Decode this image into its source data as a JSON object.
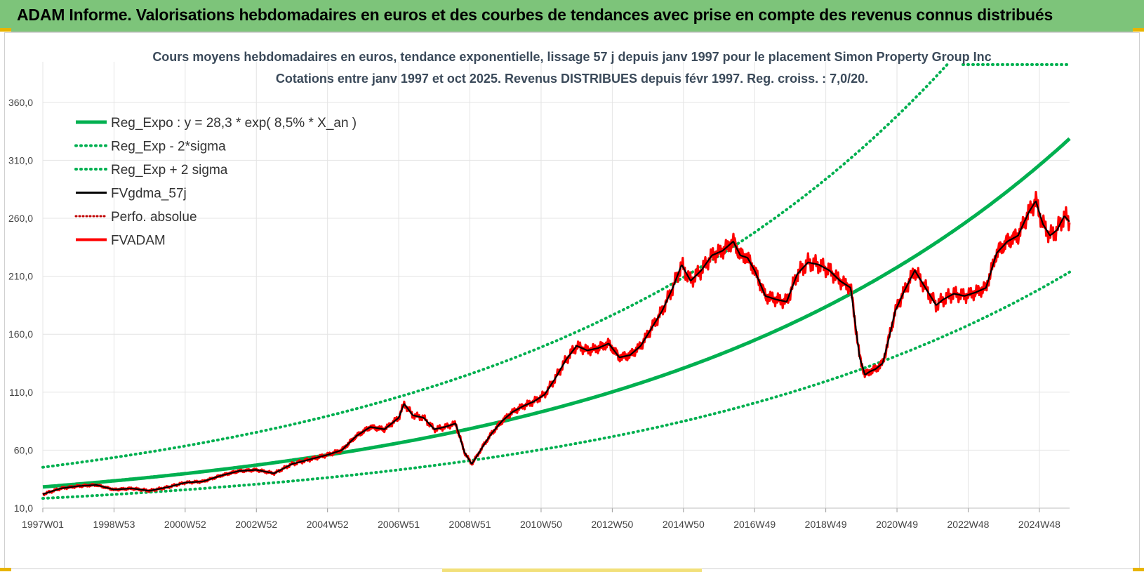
{
  "banner": {
    "title": "ADAM Informe. Valorisations hebdomadaires en euros et des courbes de tendances avec prise en compte des revenus connus distribués"
  },
  "colors": {
    "banner": "#7dc47a",
    "regression": "#00b050",
    "sigma": "#00b050",
    "smoothed": "#000000",
    "perfo": "#c00000",
    "fvadam": "#ff0000",
    "grid": "#e4e4e4"
  },
  "chart_data": {
    "type": "line",
    "title_lines": [
      "Cours moyens hebdomadaires en euros, tendance exponentielle, lissage 57 j depuis janv 1997 pour le placement Simon Property Group Inc",
      "Cotations entre janv 1997 et oct 2025. Revenus DISTRIBUES depuis févr 1997. Reg. croiss. : 7,0/20."
    ],
    "x_range": [
      1997.0,
      2025.85
    ],
    "ylim": [
      10,
      395
    ],
    "y_ticks": [
      10,
      60,
      110,
      160,
      210,
      260,
      310,
      360
    ],
    "y_tick_labels": [
      "10,0",
      "60,0",
      "110,0",
      "160,0",
      "210,0",
      "260,0",
      "310,0",
      "360,0"
    ],
    "x_ticks": [
      1997.0,
      1999.0,
      2001.0,
      2003.0,
      2005.0,
      2007.0,
      2009.0,
      2011.0,
      2013.0,
      2015.0,
      2017.0,
      2019.0,
      2021.0,
      2023.0,
      2025.0
    ],
    "x_tick_labels": [
      "1997W01",
      "1998W53",
      "2000W52",
      "2002W52",
      "2004W52",
      "2006W51",
      "2008W51",
      "2010W50",
      "2012W50",
      "2014W50",
      "2016W49",
      "2018W49",
      "2020W49",
      "2022W48",
      "2024W48"
    ],
    "grid": true,
    "legend_position": "top-left",
    "regression": {
      "a": 28.3,
      "rate": 0.085,
      "x0": 1997.0,
      "sigma_low": 0.65,
      "sigma_high": 1.6
    },
    "series": [
      {
        "name": "Reg_Expo : y = 28,3 * exp( 8,5% *  X_an )",
        "style": "solid-thick",
        "color": "#00b050"
      },
      {
        "name": "Reg_Exp - 2*sigma",
        "style": "dotted",
        "color": "#00b050"
      },
      {
        "name": "Reg_Exp + 2 sigma",
        "style": "dotted",
        "color": "#00b050"
      },
      {
        "name": "FVgdma_57j",
        "style": "solid",
        "color": "#000000"
      },
      {
        "name": "Perfo. absolue",
        "style": "dotted",
        "color": "#c00000"
      },
      {
        "name": "FVADAM",
        "style": "solid-thick",
        "color": "#ff0000",
        "x": [
          1997.0,
          1997.5,
          1998.0,
          1998.5,
          1999.0,
          1999.5,
          2000.0,
          2000.5,
          2001.0,
          2001.5,
          2002.0,
          2002.5,
          2003.0,
          2003.5,
          2004.0,
          2004.5,
          2005.0,
          2005.4,
          2005.8,
          2006.2,
          2006.6,
          2007.0,
          2007.15,
          2007.4,
          2007.7,
          2008.0,
          2008.3,
          2008.6,
          2008.85,
          2009.05,
          2009.2,
          2009.4,
          2009.6,
          2009.9,
          2010.2,
          2010.5,
          2010.8,
          2011.1,
          2011.4,
          2011.7,
          2012.0,
          2012.3,
          2012.6,
          2012.9,
          2013.2,
          2013.5,
          2013.8,
          2014.1,
          2014.4,
          2014.7,
          2014.95,
          2015.2,
          2015.5,
          2015.8,
          2016.1,
          2016.4,
          2016.6,
          2016.8,
          2017.0,
          2017.3,
          2017.6,
          2017.9,
          2018.2,
          2018.5,
          2018.8,
          2019.1,
          2019.4,
          2019.7,
          2019.95,
          2020.1,
          2020.25,
          2020.4,
          2020.6,
          2020.8,
          2020.95,
          2021.2,
          2021.5,
          2021.8,
          2022.1,
          2022.3,
          2022.6,
          2022.9,
          2023.2,
          2023.5,
          2023.8,
          2024.1,
          2024.4,
          2024.7,
          2024.9,
          2025.1,
          2025.3,
          2025.5,
          2025.7,
          2025.85
        ],
        "values": [
          22,
          27,
          29,
          30,
          26,
          27,
          25,
          28,
          32,
          33,
          38,
          42,
          43,
          40,
          48,
          52,
          56,
          60,
          72,
          80,
          78,
          88,
          100,
          90,
          88,
          78,
          80,
          83,
          58,
          48,
          55,
          65,
          74,
          85,
          93,
          98,
          102,
          108,
          122,
          138,
          150,
          146,
          148,
          152,
          140,
          142,
          150,
          165,
          180,
          200,
          220,
          206,
          215,
          228,
          232,
          240,
          228,
          226,
          215,
          193,
          190,
          188,
          212,
          222,
          220,
          215,
          206,
          200,
          140,
          125,
          128,
          130,
          135,
          160,
          180,
          197,
          215,
          200,
          185,
          190,
          195,
          193,
          196,
          200,
          230,
          240,
          245,
          265,
          275,
          255,
          245,
          250,
          262,
          257
        ]
      }
    ]
  }
}
